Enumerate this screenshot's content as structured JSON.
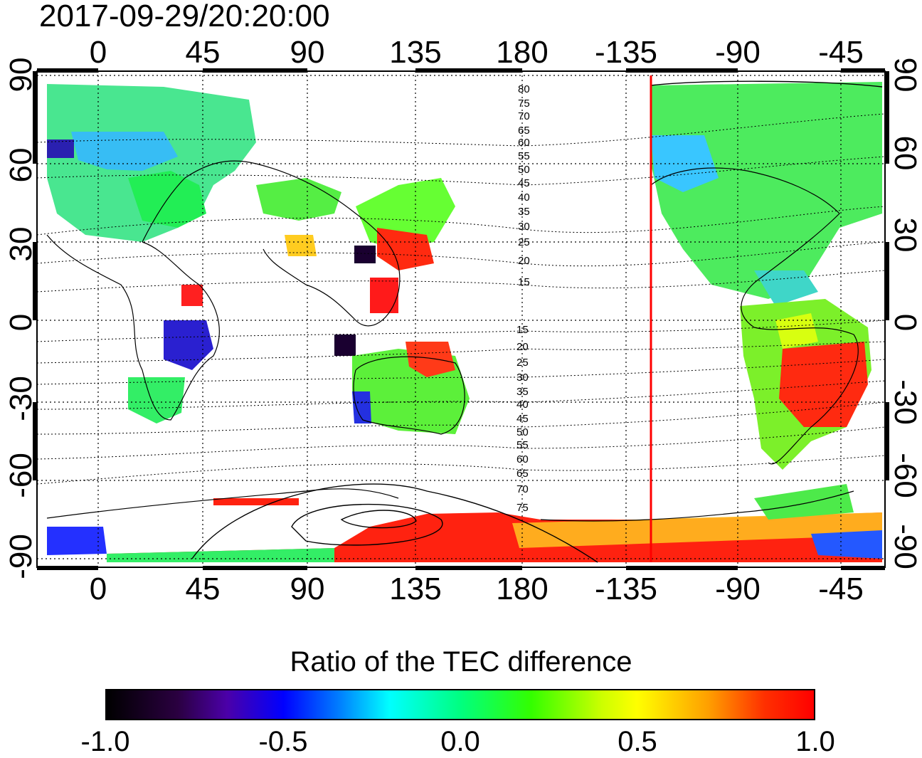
{
  "title": "2017-09-29/20:20:00",
  "top_ticks": [
    "0",
    "45",
    "90",
    "135",
    "180",
    "-135",
    "-90",
    "-45"
  ],
  "bottom_ticks": [
    "0",
    "45",
    "90",
    "135",
    "180",
    "-135",
    "-90",
    "-45"
  ],
  "left_ticks": [
    "90",
    "60",
    "30",
    "0",
    "-30",
    "-60",
    "-90"
  ],
  "right_ticks": [
    "90",
    "60",
    "30",
    "0",
    "-30",
    "-60",
    "-90"
  ],
  "contour_labels_north": [
    "80",
    "75",
    "70",
    "65",
    "60",
    "55",
    "50",
    "45",
    "40",
    "35",
    "30",
    "25",
    "20",
    "15"
  ],
  "contour_labels_south": [
    "15",
    "20",
    "25",
    "30",
    "35",
    "40",
    "45",
    "50",
    "55",
    "60",
    "65",
    "70",
    "75"
  ],
  "colorbar": {
    "title": "Ratio of the TEC difference",
    "ticks": [
      "-1.0",
      "-0.5",
      "0.0",
      "0.5",
      "1.0"
    ]
  },
  "colors": {
    "frame": "#000000",
    "red_marker": "#ff0000",
    "coast": "#000000"
  }
}
